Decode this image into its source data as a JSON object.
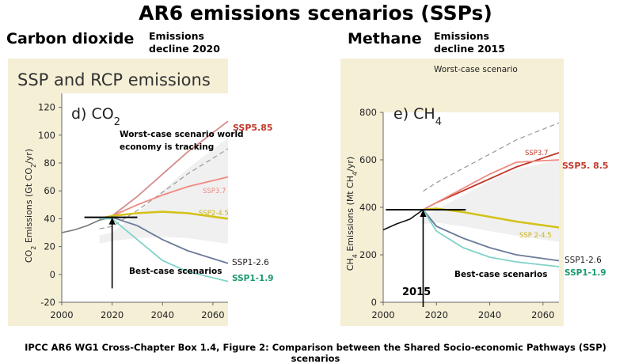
{
  "title": "AR6 emissions scenarios (SSPs)",
  "caption": "IPCC AR6 WG1 Cross-Chapter Box 1.4, Figure 2: Comparison between the Shared Socio-economic Pathways (SSP) scenarios",
  "left": {
    "heading": "Carbon  dioxide",
    "note_line1": "Emissions",
    "note_line2": "decline 2020",
    "banner": "SSP and RCP emissions"
  },
  "right": {
    "heading": "Methane",
    "note_line1": "Emissions",
    "note_line2": "decline 2015",
    "banner": "Worst-case scenario"
  },
  "colors": {
    "ssp585": "#c0392b",
    "ssp585_co2": "#d48b8b",
    "ssp37": "#ef8a80",
    "ssp245": "#d4c21a",
    "ssp126": "#6b7a9a",
    "ssp119": "#7fd3c8",
    "ssp119_label": "#1a9a6c",
    "panel_bg": "#f5efd6"
  },
  "chart_data": [
    {
      "type": "line",
      "panel": "d) CO2",
      "ylabel": "CO2 Emissions (Gt CO2/yr)",
      "xlim": [
        2000,
        2066
      ],
      "ylim": [
        -20,
        130
      ],
      "x_ticks": [
        2000,
        2020,
        2040,
        2060
      ],
      "y_ticks": [
        -20,
        0,
        20,
        40,
        60,
        80,
        100,
        120
      ],
      "annotations": {
        "worst_case_line1": "Worst-case scenario world",
        "worst_case_line2": "economy is tracking",
        "best_case": "Best-case scenarios"
      },
      "marker": {
        "x": 2020,
        "y_from": -10,
        "y_to": 41,
        "hline_y": 41,
        "hline_x": [
          2009,
          2030
        ]
      },
      "series": [
        {
          "name": "SSP5.85",
          "key": "ssp585",
          "x": [
            2015,
            2020,
            2030,
            2040,
            2050,
            2066
          ],
          "y": [
            40,
            42,
            56,
            72,
            88,
            110
          ]
        },
        {
          "name": "SSP3.7",
          "key": "ssp37",
          "x": [
            2015,
            2020,
            2030,
            2040,
            2050,
            2066
          ],
          "y": [
            40,
            42,
            50,
            57,
            63,
            70
          ]
        },
        {
          "name": "SSP2-4.5",
          "key": "ssp245",
          "x": [
            2015,
            2020,
            2030,
            2040,
            2050,
            2066
          ],
          "y": [
            40,
            42,
            44,
            45,
            44,
            40
          ]
        },
        {
          "name": "SSP1-2.6",
          "key": "ssp126",
          "x": [
            2015,
            2020,
            2030,
            2040,
            2050,
            2066
          ],
          "y": [
            40,
            41,
            35,
            25,
            17,
            8
          ]
        },
        {
          "name": "SSP1-1.9",
          "key": "ssp119",
          "x": [
            2015,
            2020,
            2030,
            2040,
            2050,
            2066
          ],
          "y": [
            40,
            40,
            25,
            10,
            2,
            -5
          ]
        }
      ],
      "history": {
        "x": [
          2000,
          2005,
          2010,
          2015,
          2020
        ],
        "y": [
          30,
          32,
          35,
          39,
          41
        ]
      }
    },
    {
      "type": "line",
      "panel": "e) CH4",
      "ylabel": "CH4 Emissions (Mt CH4/yr)",
      "xlim": [
        2000,
        2066
      ],
      "ylim": [
        0,
        800
      ],
      "x_ticks": [
        2000,
        2020,
        2040,
        2060
      ],
      "y_ticks": [
        0,
        200,
        400,
        600,
        800
      ],
      "annotations": {
        "best_case": "Best-case scenarios",
        "year": "2015"
      },
      "marker": {
        "x": 2015,
        "y_from": -20,
        "y_to": 390,
        "hline_y": 390,
        "hline_x": [
          2001,
          2031
        ]
      },
      "series": [
        {
          "name": "SSP5. 8.5",
          "key": "ssp585",
          "x": [
            2015,
            2020,
            2030,
            2040,
            2050,
            2066
          ],
          "y": [
            390,
            420,
            470,
            520,
            570,
            630
          ]
        },
        {
          "name": "SSP3.7",
          "key": "ssp37",
          "x": [
            2015,
            2020,
            2030,
            2040,
            2050,
            2066
          ],
          "y": [
            390,
            420,
            480,
            540,
            590,
            600
          ]
        },
        {
          "name": "SSP 2-4.5",
          "key": "ssp245",
          "x": [
            2015,
            2020,
            2030,
            2040,
            2050,
            2066
          ],
          "y": [
            390,
            395,
            380,
            360,
            340,
            315
          ]
        },
        {
          "name": "SSP1-2.6",
          "key": "ssp126",
          "x": [
            2015,
            2020,
            2030,
            2040,
            2050,
            2066
          ],
          "y": [
            390,
            320,
            270,
            230,
            200,
            175
          ]
        },
        {
          "name": "SSP1-1.9",
          "key": "ssp119",
          "x": [
            2015,
            2020,
            2030,
            2040,
            2050,
            2066
          ],
          "y": [
            390,
            300,
            230,
            190,
            170,
            150
          ]
        }
      ],
      "history": {
        "x": [
          2000,
          2005,
          2010,
          2015
        ],
        "y": [
          305,
          330,
          350,
          390
        ]
      }
    }
  ]
}
